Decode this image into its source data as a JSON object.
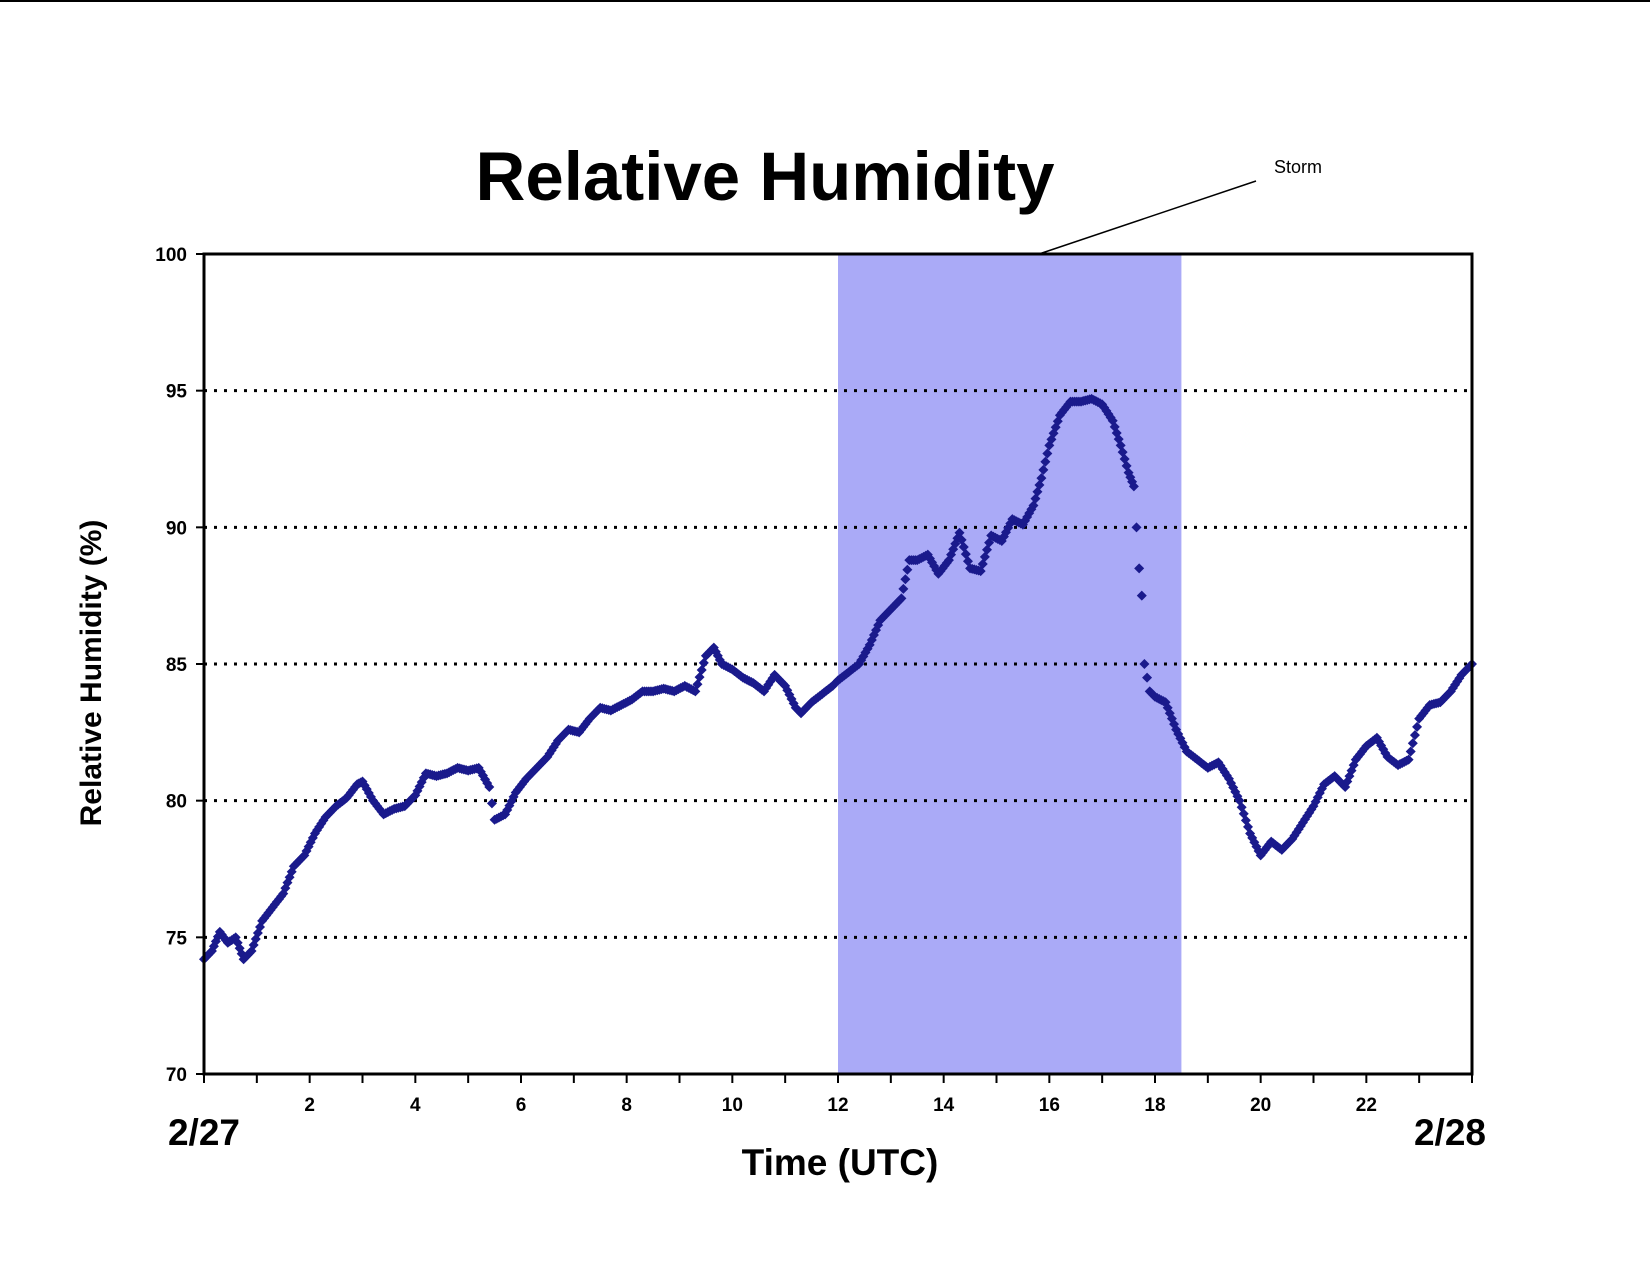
{
  "chart_data": {
    "type": "scatter",
    "title": "Relative Humidity",
    "xlabel": "Time (UTC)",
    "ylabel": "Relative Humidity (%)",
    "xlim": [
      0,
      24
    ],
    "ylim": [
      70,
      100
    ],
    "x_ticks": [
      2,
      4,
      6,
      8,
      10,
      12,
      14,
      16,
      18,
      20,
      22
    ],
    "y_ticks": [
      70,
      75,
      80,
      85,
      90,
      95,
      100
    ],
    "start_date_label": "2/27",
    "end_date_label": "2/28",
    "grid": "horizontal dotted",
    "marker": "diamond",
    "colors": {
      "series": "#1a1a8c",
      "highlight": "#aaaaf7"
    },
    "highlight_region": {
      "x": [
        12.0,
        18.5
      ],
      "label": "Storm"
    },
    "series": [
      {
        "x": [
          0,
          0.15,
          0.3,
          0.45,
          0.6,
          0.75,
          0.9,
          1.1,
          1.3,
          1.5,
          1.7,
          1.9,
          2.1,
          2.3,
          2.5,
          2.7,
          2.9,
          3.0,
          3.2,
          3.4,
          3.6,
          3.8,
          4.0,
          4.2,
          4.4,
          4.6,
          4.8,
          5.0,
          5.2,
          5.4,
          5.5,
          5.7,
          5.9,
          6.1,
          6.3,
          6.5,
          6.7,
          6.9,
          7.1,
          7.3,
          7.5,
          7.7,
          7.9,
          8.1,
          8.3,
          8.5,
          8.7,
          8.9,
          9.1,
          9.3,
          9.5,
          9.65,
          9.8,
          10.0,
          10.2,
          10.4,
          10.6,
          10.8,
          11.0,
          11.2,
          11.3,
          11.5,
          11.7,
          11.9,
          12.0,
          12.2,
          12.4,
          12.6,
          12.8,
          13.0,
          13.2,
          13.35,
          13.5,
          13.7,
          13.9,
          14.1,
          14.3,
          14.5,
          14.7,
          14.9,
          15.1,
          15.3,
          15.5,
          15.7,
          15.85,
          16.0,
          16.2,
          16.4,
          16.6,
          16.8,
          17.0,
          17.2,
          17.35,
          17.5,
          17.6,
          17.65,
          17.7,
          17.75,
          17.8,
          17.9,
          18.0,
          18.2,
          18.4,
          18.6,
          18.8,
          19.0,
          19.2,
          19.4,
          19.6,
          19.8,
          20.0,
          20.2,
          20.4,
          20.6,
          20.8,
          21.0,
          21.2,
          21.4,
          21.6,
          21.8,
          22.0,
          22.2,
          22.4,
          22.6,
          22.8,
          23.0,
          23.2,
          23.4,
          23.6,
          23.8,
          24.0
        ],
        "y": [
          74.2,
          74.5,
          75.2,
          74.8,
          75.0,
          74.2,
          74.5,
          75.6,
          76.1,
          76.6,
          77.6,
          78.0,
          78.8,
          79.4,
          79.8,
          80.1,
          80.6,
          80.7,
          80.0,
          79.5,
          79.7,
          79.8,
          80.2,
          81.0,
          80.9,
          81.0,
          81.2,
          81.1,
          81.2,
          80.5,
          79.3,
          79.5,
          80.3,
          80.8,
          81.2,
          81.6,
          82.2,
          82.6,
          82.5,
          83.0,
          83.4,
          83.3,
          83.5,
          83.7,
          84.0,
          84.0,
          84.1,
          84.0,
          84.2,
          84.0,
          85.3,
          85.6,
          85.0,
          84.8,
          84.5,
          84.3,
          84.0,
          84.6,
          84.2,
          83.4,
          83.2,
          83.6,
          83.9,
          84.2,
          84.4,
          84.7,
          85.0,
          85.7,
          86.6,
          87.0,
          87.4,
          88.8,
          88.8,
          89.0,
          88.3,
          88.8,
          89.8,
          88.5,
          88.4,
          89.7,
          89.5,
          90.3,
          90.1,
          90.8,
          91.8,
          93.0,
          94.1,
          94.6,
          94.6,
          94.7,
          94.5,
          93.9,
          93.0,
          92.0,
          91.5,
          90.0,
          88.5,
          87.5,
          85.0,
          84.0,
          83.8,
          83.6,
          82.6,
          81.8,
          81.5,
          81.2,
          81.4,
          80.8,
          80.0,
          78.8,
          78.0,
          78.5,
          78.2,
          78.6,
          79.2,
          79.8,
          80.6,
          80.9,
          80.5,
          81.5,
          82.0,
          82.3,
          81.6,
          81.3,
          81.5,
          83.0,
          83.5,
          83.6,
          84.0,
          84.6,
          85.0
        ]
      }
    ]
  }
}
